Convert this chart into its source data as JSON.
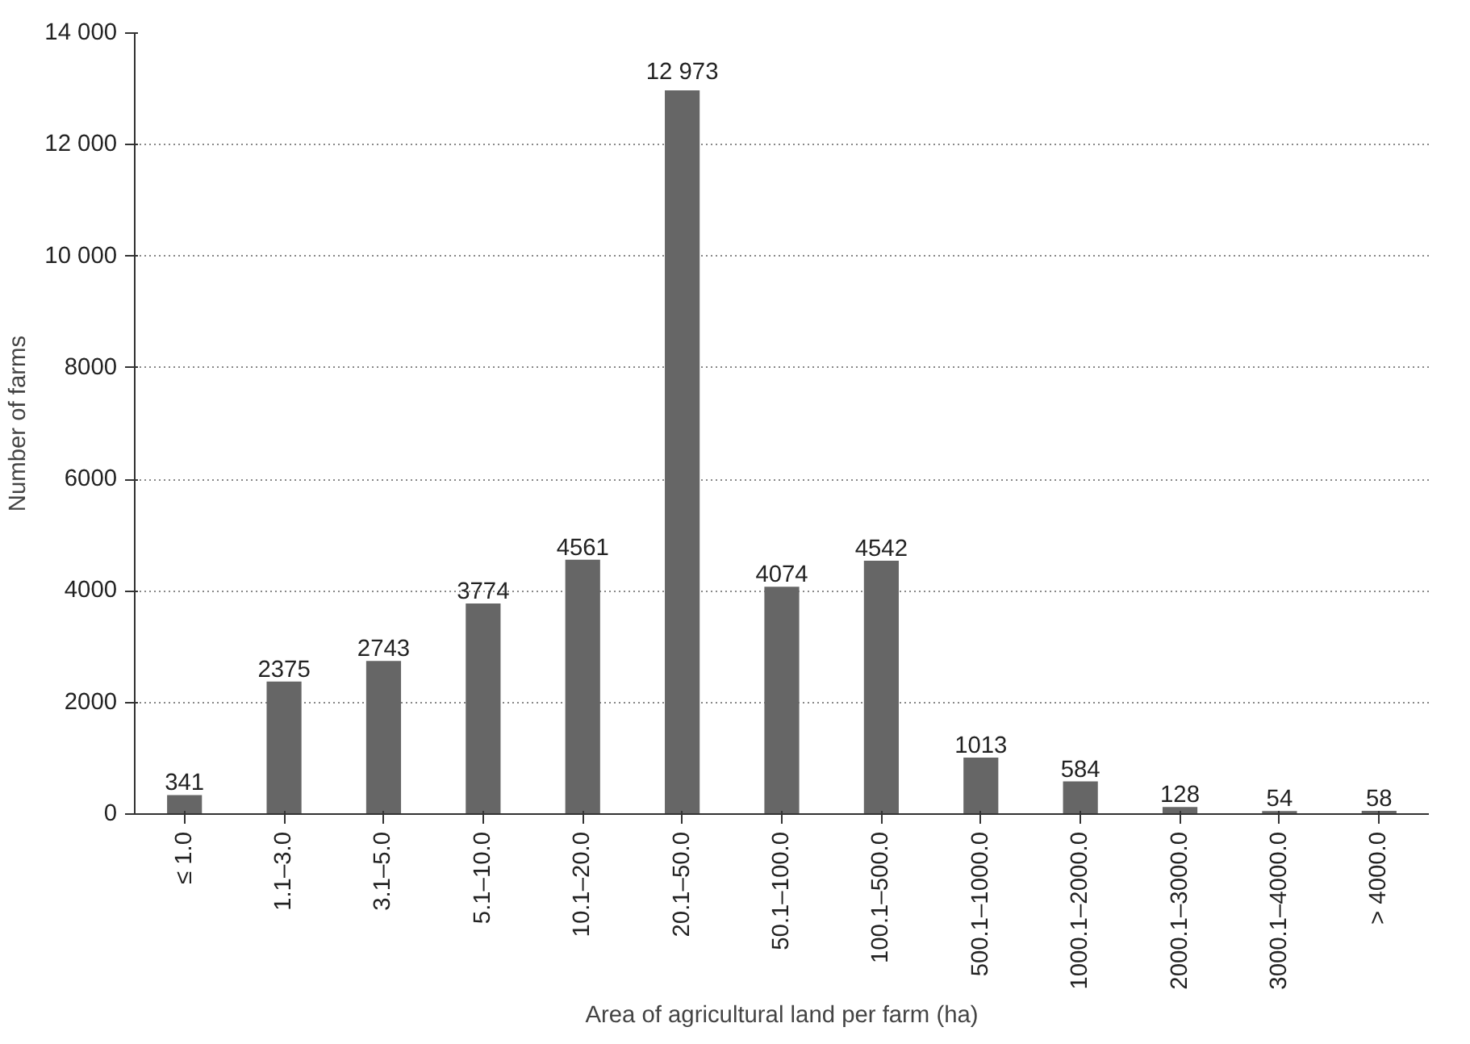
{
  "chart_data": {
    "type": "bar",
    "xlabel": "Area of agricultural land per farm (ha)",
    "ylabel": "Number of farms",
    "categories": [
      "≤ 1.0",
      "1.1–3.0",
      "3.1–5.0",
      "5.1–10.0",
      "10.1–20.0",
      "20.1–50.0",
      "50.1–100.0",
      "100.1–500.0",
      "500.1–1000.0",
      "1000.1–2000.0",
      "2000.1–3000.0",
      "3000.1–4000.0",
      "> 4000.0"
    ],
    "values": [
      341,
      2375,
      2743,
      3774,
      4561,
      12973,
      4074,
      4542,
      1013,
      584,
      128,
      54,
      58
    ],
    "value_labels": [
      "341",
      "2375",
      "2743",
      "3774",
      "4561",
      "12 973",
      "4074",
      "4542",
      "1013",
      "584",
      "128",
      "54",
      "58"
    ],
    "color": "#666666",
    "ylim": [
      0,
      14000
    ],
    "yticks": [
      0,
      2000,
      4000,
      6000,
      8000,
      {
        "value": 10000,
        "label": "10 000"
      },
      {
        "value": 12000,
        "label": "12 000"
      },
      {
        "value": 14000,
        "label": "14 000"
      }
    ],
    "grid": "y"
  }
}
